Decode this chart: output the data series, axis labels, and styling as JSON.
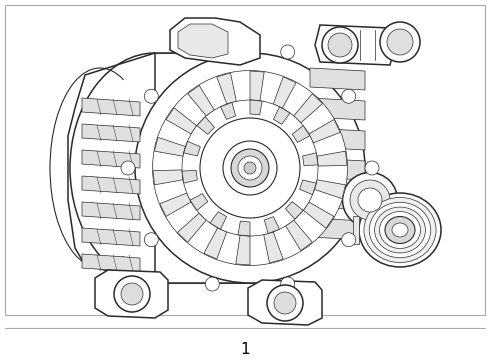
{
  "label": "1",
  "bg": "#ffffff",
  "lc": "#2a2a2a",
  "lc2": "#555555",
  "fig_w": 4.9,
  "fig_h": 3.6,
  "dpi": 100,
  "border": [
    5,
    5,
    480,
    310
  ]
}
